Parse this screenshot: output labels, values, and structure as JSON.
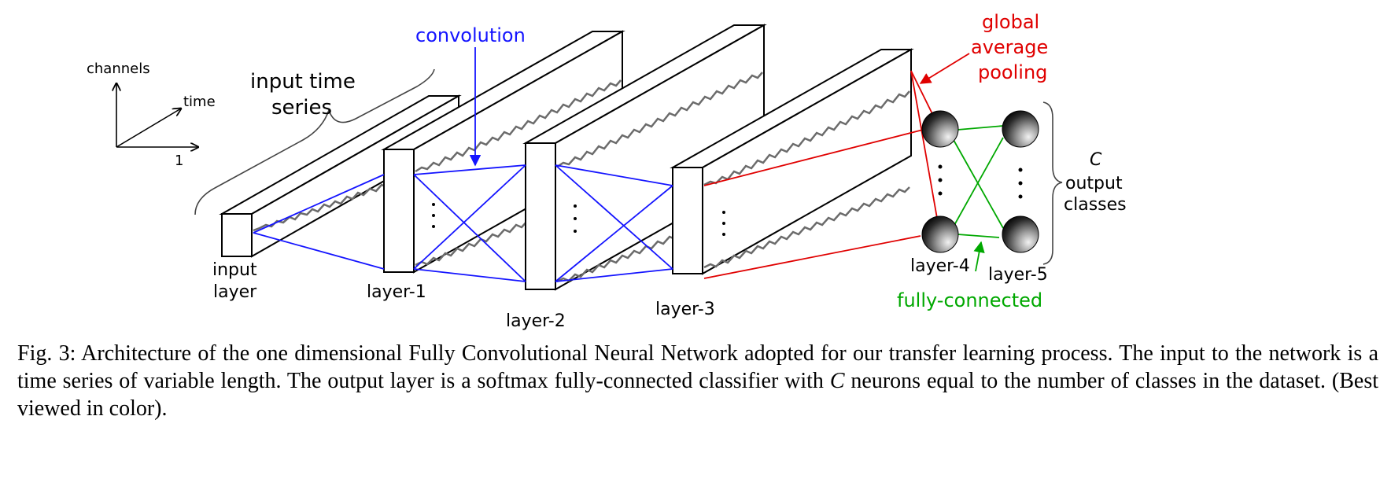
{
  "axes": {
    "channels": "channels",
    "time": "time",
    "one": "1"
  },
  "labels": {
    "input_series_1": "input time",
    "input_series_2": "series",
    "input_layer_1": "input",
    "input_layer_2": "layer",
    "layer1": "layer-1",
    "layer2": "layer-2",
    "layer3": "layer-3",
    "layer4": "layer-4",
    "layer5": "layer-5",
    "convolution": "convolution",
    "gap_1": "global",
    "gap_2": "average",
    "gap_3": "pooling",
    "fully_connected": "fully-connected",
    "c_symbol": "C",
    "output_1": "output",
    "output_2": "classes"
  },
  "colors": {
    "convolution": "#1414ff",
    "pooling": "#e00000",
    "fully_connected": "#00a800",
    "signal": "#6b6b6b"
  },
  "caption": {
    "part1": "Fig. 3: Architecture of the one dimensional Fully Convolutional Neural Network adopted for our transfer learning process. The input to the network is a time series of variable length. The output layer is a softmax fully-connected classifier with ",
    "math": "C",
    "part2": " neurons equal to the number of classes in the dataset. (Best viewed in color)."
  }
}
